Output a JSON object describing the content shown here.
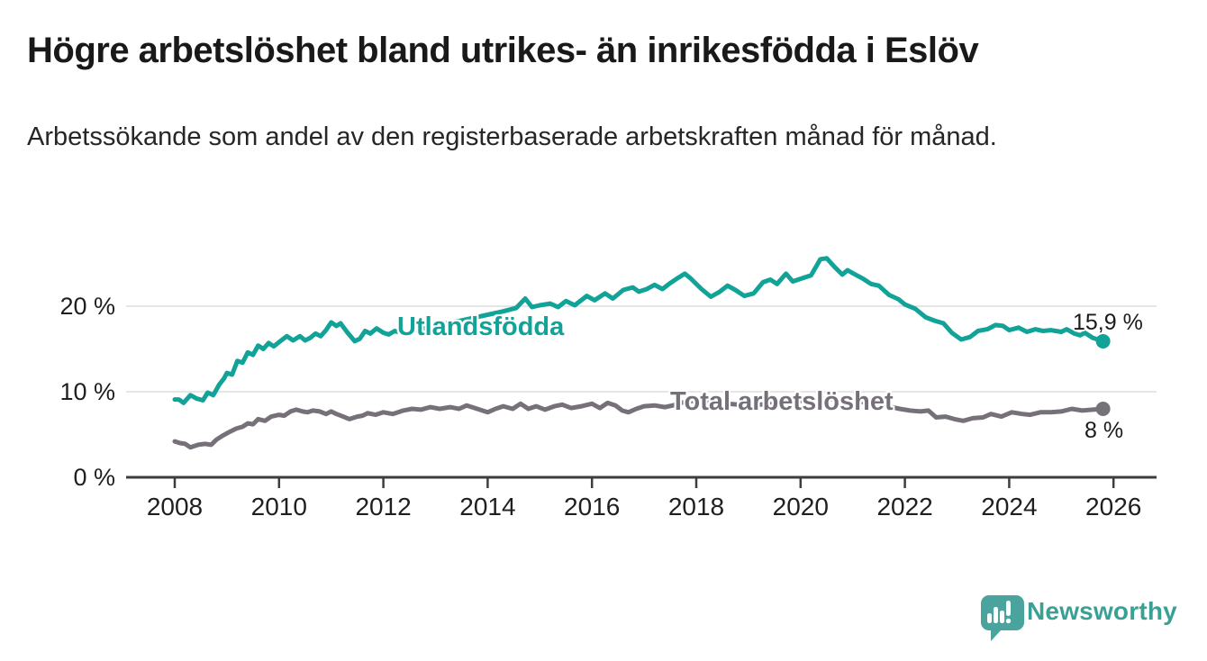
{
  "title": "Högre arbetslöshet bland utrikes- än inrikesfödda i Eslöv",
  "subtitle": "Arbetssökande som andel av den registerbaserade arbetskraften månad för månad.",
  "branding": {
    "logo_text": "Newsworthy",
    "logo_icon_color": "#4aa39c",
    "logo_text_color": "#3aa096"
  },
  "chart_data": {
    "type": "line",
    "title": "Högre arbetslöshet bland utrikes- än inrikesfödda i Eslöv",
    "xlabel": "",
    "ylabel": "",
    "unit": "%",
    "x_axis": {
      "tick_labels": [
        "2008",
        "2010",
        "2012",
        "2014",
        "2016",
        "2018",
        "2020",
        "2022",
        "2024",
        "2026"
      ],
      "tick_values": [
        2008,
        2010,
        2012,
        2014,
        2016,
        2018,
        2020,
        2022,
        2024,
        2026
      ],
      "range": [
        2007.1,
        2026.8
      ]
    },
    "y_axis": {
      "tick_labels": [
        "0 %",
        "10 %",
        "20 %"
      ],
      "tick_values": [
        0,
        10,
        20
      ],
      "range": [
        0,
        27.3
      ]
    },
    "grid": "horizontal",
    "colors": {
      "axis": "#3d3d3d",
      "gridline": "#dedede",
      "tick_text": "#1f1f1f"
    },
    "series": [
      {
        "name": "Utlandsfödda",
        "color": "#11a397",
        "end_label": "15,9 %",
        "end_value": 15.9,
        "points": [
          [
            2008.0,
            9.1
          ],
          [
            2008.08,
            9.1
          ],
          [
            2008.17,
            8.7
          ],
          [
            2008.3,
            9.6
          ],
          [
            2008.42,
            9.2
          ],
          [
            2008.54,
            9.0
          ],
          [
            2008.63,
            9.9
          ],
          [
            2008.74,
            9.6
          ],
          [
            2008.85,
            10.8
          ],
          [
            2008.95,
            11.6
          ],
          [
            2009.0,
            12.2
          ],
          [
            2009.1,
            12.0
          ],
          [
            2009.2,
            13.6
          ],
          [
            2009.3,
            13.4
          ],
          [
            2009.4,
            14.6
          ],
          [
            2009.5,
            14.3
          ],
          [
            2009.6,
            15.4
          ],
          [
            2009.7,
            15.0
          ],
          [
            2009.8,
            15.7
          ],
          [
            2009.9,
            15.3
          ],
          [
            2010.0,
            15.8
          ],
          [
            2010.15,
            16.5
          ],
          [
            2010.27,
            16.0
          ],
          [
            2010.4,
            16.5
          ],
          [
            2010.5,
            16.0
          ],
          [
            2010.6,
            16.3
          ],
          [
            2010.7,
            16.8
          ],
          [
            2010.8,
            16.5
          ],
          [
            2010.9,
            17.2
          ],
          [
            2011.0,
            18.1
          ],
          [
            2011.1,
            17.7
          ],
          [
            2011.18,
            18.0
          ],
          [
            2011.3,
            17.0
          ],
          [
            2011.45,
            15.9
          ],
          [
            2011.55,
            16.2
          ],
          [
            2011.65,
            17.1
          ],
          [
            2011.75,
            16.8
          ],
          [
            2011.87,
            17.4
          ],
          [
            2012.0,
            16.9
          ],
          [
            2012.1,
            16.7
          ],
          [
            2012.22,
            17.1
          ],
          [
            2012.38,
            16.8
          ],
          [
            2012.6,
            17.2
          ],
          [
            2012.85,
            17.5
          ],
          [
            2013.1,
            17.9
          ],
          [
            2013.4,
            18.2
          ],
          [
            2013.7,
            18.6
          ],
          [
            2014.0,
            19.0
          ],
          [
            2014.3,
            19.4
          ],
          [
            2014.55,
            19.8
          ],
          [
            2014.72,
            20.9
          ],
          [
            2014.85,
            19.9
          ],
          [
            2015.0,
            20.1
          ],
          [
            2015.2,
            20.3
          ],
          [
            2015.35,
            19.9
          ],
          [
            2015.5,
            20.6
          ],
          [
            2015.67,
            20.1
          ],
          [
            2015.9,
            21.2
          ],
          [
            2016.05,
            20.7
          ],
          [
            2016.25,
            21.5
          ],
          [
            2016.4,
            20.9
          ],
          [
            2016.6,
            21.9
          ],
          [
            2016.78,
            22.2
          ],
          [
            2016.9,
            21.7
          ],
          [
            2017.05,
            22.0
          ],
          [
            2017.2,
            22.5
          ],
          [
            2017.35,
            22.0
          ],
          [
            2017.5,
            22.7
          ],
          [
            2017.65,
            23.3
          ],
          [
            2017.78,
            23.8
          ],
          [
            2017.9,
            23.2
          ],
          [
            2018.1,
            22.0
          ],
          [
            2018.28,
            21.1
          ],
          [
            2018.45,
            21.7
          ],
          [
            2018.6,
            22.4
          ],
          [
            2018.75,
            21.9
          ],
          [
            2018.92,
            21.2
          ],
          [
            2019.1,
            21.5
          ],
          [
            2019.28,
            22.8
          ],
          [
            2019.42,
            23.1
          ],
          [
            2019.55,
            22.6
          ],
          [
            2019.72,
            23.8
          ],
          [
            2019.85,
            22.9
          ],
          [
            2020.0,
            23.2
          ],
          [
            2020.2,
            23.6
          ],
          [
            2020.38,
            25.5
          ],
          [
            2020.5,
            25.6
          ],
          [
            2020.65,
            24.6
          ],
          [
            2020.8,
            23.7
          ],
          [
            2020.9,
            24.2
          ],
          [
            2021.05,
            23.7
          ],
          [
            2021.2,
            23.2
          ],
          [
            2021.35,
            22.6
          ],
          [
            2021.5,
            22.4
          ],
          [
            2021.7,
            21.3
          ],
          [
            2021.88,
            20.8
          ],
          [
            2022.0,
            20.2
          ],
          [
            2022.2,
            19.7
          ],
          [
            2022.4,
            18.7
          ],
          [
            2022.57,
            18.3
          ],
          [
            2022.74,
            18.0
          ],
          [
            2022.9,
            16.9
          ],
          [
            2023.08,
            16.1
          ],
          [
            2023.25,
            16.4
          ],
          [
            2023.4,
            17.1
          ],
          [
            2023.58,
            17.3
          ],
          [
            2023.74,
            17.8
          ],
          [
            2023.88,
            17.7
          ],
          [
            2024.0,
            17.2
          ],
          [
            2024.18,
            17.5
          ],
          [
            2024.34,
            17.0
          ],
          [
            2024.5,
            17.3
          ],
          [
            2024.65,
            17.1
          ],
          [
            2024.8,
            17.2
          ],
          [
            2025.0,
            17.0
          ],
          [
            2025.1,
            17.3
          ],
          [
            2025.25,
            16.8
          ],
          [
            2025.36,
            16.6
          ],
          [
            2025.45,
            16.9
          ],
          [
            2025.6,
            16.3
          ],
          [
            2025.7,
            16.1
          ],
          [
            2025.8,
            15.9
          ]
        ]
      },
      {
        "name": "Total arbetslöshet",
        "color": "#767179",
        "end_label": "8 %",
        "end_value": 8,
        "points": [
          [
            2008.0,
            4.2
          ],
          [
            2008.1,
            4.0
          ],
          [
            2008.2,
            3.9
          ],
          [
            2008.3,
            3.5
          ],
          [
            2008.45,
            3.8
          ],
          [
            2008.58,
            3.9
          ],
          [
            2008.7,
            3.8
          ],
          [
            2008.8,
            4.4
          ],
          [
            2008.93,
            4.9
          ],
          [
            2009.05,
            5.3
          ],
          [
            2009.18,
            5.7
          ],
          [
            2009.3,
            5.9
          ],
          [
            2009.4,
            6.3
          ],
          [
            2009.5,
            6.2
          ],
          [
            2009.6,
            6.8
          ],
          [
            2009.73,
            6.6
          ],
          [
            2009.85,
            7.1
          ],
          [
            2010.0,
            7.3
          ],
          [
            2010.1,
            7.2
          ],
          [
            2010.22,
            7.7
          ],
          [
            2010.33,
            7.9
          ],
          [
            2010.45,
            7.7
          ],
          [
            2010.55,
            7.6
          ],
          [
            2010.65,
            7.8
          ],
          [
            2010.78,
            7.7
          ],
          [
            2010.9,
            7.4
          ],
          [
            2011.0,
            7.7
          ],
          [
            2011.1,
            7.4
          ],
          [
            2011.23,
            7.1
          ],
          [
            2011.35,
            6.8
          ],
          [
            2011.5,
            7.1
          ],
          [
            2011.6,
            7.2
          ],
          [
            2011.7,
            7.5
          ],
          [
            2011.85,
            7.3
          ],
          [
            2012.0,
            7.6
          ],
          [
            2012.18,
            7.4
          ],
          [
            2012.38,
            7.8
          ],
          [
            2012.55,
            8.0
          ],
          [
            2012.72,
            7.9
          ],
          [
            2012.9,
            8.2
          ],
          [
            2013.08,
            8.0
          ],
          [
            2013.28,
            8.2
          ],
          [
            2013.45,
            8.0
          ],
          [
            2013.6,
            8.4
          ],
          [
            2013.8,
            8.0
          ],
          [
            2014.0,
            7.6
          ],
          [
            2014.15,
            8.0
          ],
          [
            2014.3,
            8.3
          ],
          [
            2014.48,
            8.0
          ],
          [
            2014.63,
            8.6
          ],
          [
            2014.78,
            8.0
          ],
          [
            2014.93,
            8.3
          ],
          [
            2015.1,
            7.9
          ],
          [
            2015.28,
            8.3
          ],
          [
            2015.43,
            8.5
          ],
          [
            2015.6,
            8.1
          ],
          [
            2015.8,
            8.3
          ],
          [
            2016.0,
            8.6
          ],
          [
            2016.15,
            8.1
          ],
          [
            2016.3,
            8.7
          ],
          [
            2016.45,
            8.4
          ],
          [
            2016.58,
            7.8
          ],
          [
            2016.7,
            7.6
          ],
          [
            2016.85,
            8.0
          ],
          [
            2017.0,
            8.3
          ],
          [
            2017.2,
            8.4
          ],
          [
            2017.4,
            8.2
          ],
          [
            2017.55,
            8.4
          ],
          [
            2017.7,
            8.7
          ],
          [
            2017.9,
            8.9
          ],
          [
            2018.1,
            9.0
          ],
          [
            2018.4,
            8.7
          ],
          [
            2018.8,
            8.5
          ],
          [
            2019.2,
            8.5
          ],
          [
            2019.6,
            8.6
          ],
          [
            2020.0,
            8.9
          ],
          [
            2020.4,
            9.2
          ],
          [
            2020.8,
            9.0
          ],
          [
            2021.2,
            8.8
          ],
          [
            2021.6,
            8.4
          ],
          [
            2021.9,
            8.0
          ],
          [
            2022.1,
            7.8
          ],
          [
            2022.3,
            7.7
          ],
          [
            2022.45,
            7.8
          ],
          [
            2022.6,
            7.0
          ],
          [
            2022.78,
            7.1
          ],
          [
            2022.95,
            6.8
          ],
          [
            2023.12,
            6.6
          ],
          [
            2023.3,
            6.9
          ],
          [
            2023.5,
            7.0
          ],
          [
            2023.65,
            7.4
          ],
          [
            2023.85,
            7.1
          ],
          [
            2024.05,
            7.6
          ],
          [
            2024.25,
            7.4
          ],
          [
            2024.4,
            7.3
          ],
          [
            2024.6,
            7.6
          ],
          [
            2024.8,
            7.6
          ],
          [
            2025.0,
            7.7
          ],
          [
            2025.2,
            8.0
          ],
          [
            2025.4,
            7.8
          ],
          [
            2025.6,
            7.9
          ],
          [
            2025.8,
            8.0
          ]
        ]
      }
    ]
  }
}
